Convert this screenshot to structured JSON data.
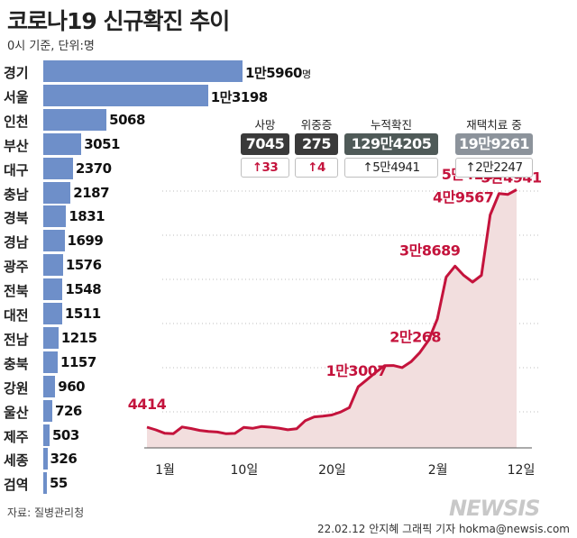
{
  "title": "코로나19 신규확진 추이",
  "subtitle": "0시 기준, 단위:명",
  "source": "자료: 질병관리청",
  "credit": "22.02.12 안지혜 그래픽 기자 hokma@newsis.com",
  "watermark": "NEWSIS",
  "colors": {
    "bar": "#6e8fc9",
    "line": "#c4133c",
    "area": "#f2dede",
    "death": "#3a3a3a",
    "severe": "#3a3a3a",
    "cumulative": "#4f5a58",
    "home": "#8c939b"
  },
  "chart_data": [
    {
      "type": "bar",
      "orientation": "horizontal",
      "unit": "명",
      "categories": [
        "경기",
        "서울",
        "인천",
        "부산",
        "대구",
        "충남",
        "경북",
        "경남",
        "광주",
        "전북",
        "대전",
        "전남",
        "충북",
        "강원",
        "울산",
        "제주",
        "세종",
        "검역"
      ],
      "values": [
        15960,
        13198,
        5068,
        3051,
        2370,
        2187,
        1831,
        1699,
        1576,
        1548,
        1511,
        1215,
        1157,
        960,
        726,
        503,
        326,
        55
      ],
      "value_labels": [
        "1만5960",
        "1만3198",
        "5068",
        "3051",
        "2370",
        "2187",
        "1831",
        "1699",
        "1576",
        "1548",
        "1511",
        "1215",
        "1157",
        "960",
        "726",
        "503",
        "326",
        "55"
      ]
    },
    {
      "type": "area",
      "x_tick_labels": [
        "1월",
        "10일",
        "20일",
        "2월",
        "12일"
      ],
      "x": [
        "01-01",
        "01-02",
        "01-03",
        "01-04",
        "01-05",
        "01-06",
        "01-07",
        "01-08",
        "01-09",
        "01-10",
        "01-11",
        "01-12",
        "01-13",
        "01-14",
        "01-15",
        "01-16",
        "01-17",
        "01-18",
        "01-19",
        "01-20",
        "01-21",
        "01-22",
        "01-23",
        "01-24",
        "01-25",
        "01-26",
        "01-27",
        "01-28",
        "01-29",
        "01-30",
        "01-31",
        "02-01",
        "02-02",
        "02-03",
        "02-04",
        "02-05",
        "02-06",
        "02-07",
        "02-08",
        "02-09",
        "02-10",
        "02-11",
        "02-12"
      ],
      "values": [
        4414,
        3833,
        3127,
        3021,
        4443,
        4125,
        3711,
        3512,
        3370,
        3005,
        3090,
        4382,
        4165,
        4539,
        4419,
        4194,
        3856,
        4069,
        5803,
        6603,
        6767,
        7007,
        7630,
        8570,
        13007,
        14517,
        16094,
        17511,
        17528,
        17085,
        18341,
        20268,
        22906,
        27443,
        36362,
        38689,
        36714,
        35283,
        36717,
        49567,
        54122,
        53926,
        54941
      ],
      "annotations": [
        {
          "x": "01-01",
          "label": "4414"
        },
        {
          "x": "01-25",
          "label": "1만3007"
        },
        {
          "x": "02-01",
          "label": "2만268"
        },
        {
          "x": "02-05",
          "label": "3만8689"
        },
        {
          "x": "02-09",
          "label": "4만9567"
        },
        {
          "x": "02-10",
          "label": "5만4122"
        },
        {
          "x": "02-12",
          "label": "5만4941"
        }
      ],
      "ylim": [
        0,
        56000
      ]
    }
  ],
  "summary": [
    {
      "label": "사망",
      "value": "7045",
      "change": "33",
      "arrow": "↑",
      "red": true,
      "color": "#3a3a3a",
      "width": 54
    },
    {
      "label": "위중증",
      "value": "275",
      "change": "4",
      "arrow": "↑",
      "red": true,
      "color": "#3a3a3a",
      "width": 48
    },
    {
      "label": "누적확진",
      "value": "129만4205",
      "change": "5만4941",
      "arrow": "↑",
      "red": false,
      "color": "#4f5a58",
      "width": 104
    },
    {
      "label": "재택치료 중",
      "value": "19만9261",
      "change": "2만2247",
      "arrow": "↑",
      "red": false,
      "color": "#8c939b",
      "width": 86
    }
  ]
}
